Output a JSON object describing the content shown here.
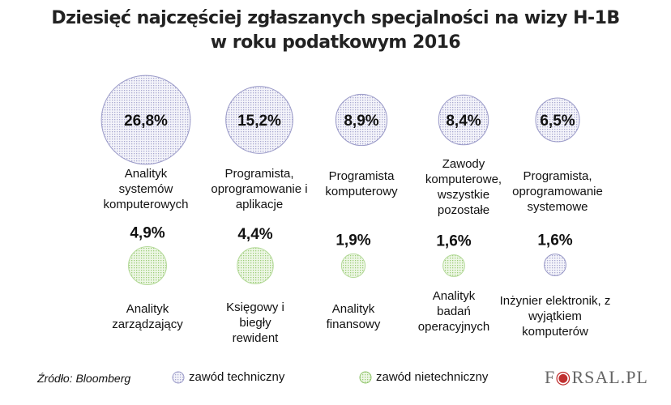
{
  "chart_data": {
    "type": "bubble",
    "title": "Dziesięć najczęściej zgłaszanych specjalności na wizy H-1B",
    "subtitle": "w roku podatkowym 2016",
    "unit": "%",
    "series": [
      {
        "name": "zawód techniczny",
        "color": "#9a9ac8",
        "items": [
          {
            "label": "Analityk systemów komputerowych",
            "value": 26.8,
            "text": "26,8%"
          },
          {
            "label": "Programista, oprogramowanie i aplikacje",
            "value": 15.2,
            "text": "15,2%"
          },
          {
            "label": "Programista komputerowy",
            "value": 8.9,
            "text": "8,9%"
          },
          {
            "label": "Zawody komputerowe, wszystkie pozostałe",
            "value": 8.4,
            "text": "8,4%"
          },
          {
            "label": "Programista, oprogramowanie systemowe",
            "value": 6.5,
            "text": "6,5%"
          },
          {
            "label": "Inżynier elektronik, z wyjątkiem komputerów",
            "value": 1.6,
            "text": "1,6%"
          }
        ]
      },
      {
        "name": "zawód nietechniczny",
        "color": "#8fc46a",
        "items": [
          {
            "label": "Analityk zarządzający",
            "value": 4.9,
            "text": "4,9%"
          },
          {
            "label": "Księgowy i biegły rewident",
            "value": 4.4,
            "text": "4,4%"
          },
          {
            "label": "Analityk finansowy",
            "value": 1.9,
            "text": "1,9%"
          },
          {
            "label": "Analityk badań operacyjnych",
            "value": 1.6,
            "text": "1,6%"
          }
        ]
      }
    ],
    "legend_placement": "bottom"
  },
  "source": "Źródło: Bloomberg",
  "logo": "FORSAL.PL"
}
